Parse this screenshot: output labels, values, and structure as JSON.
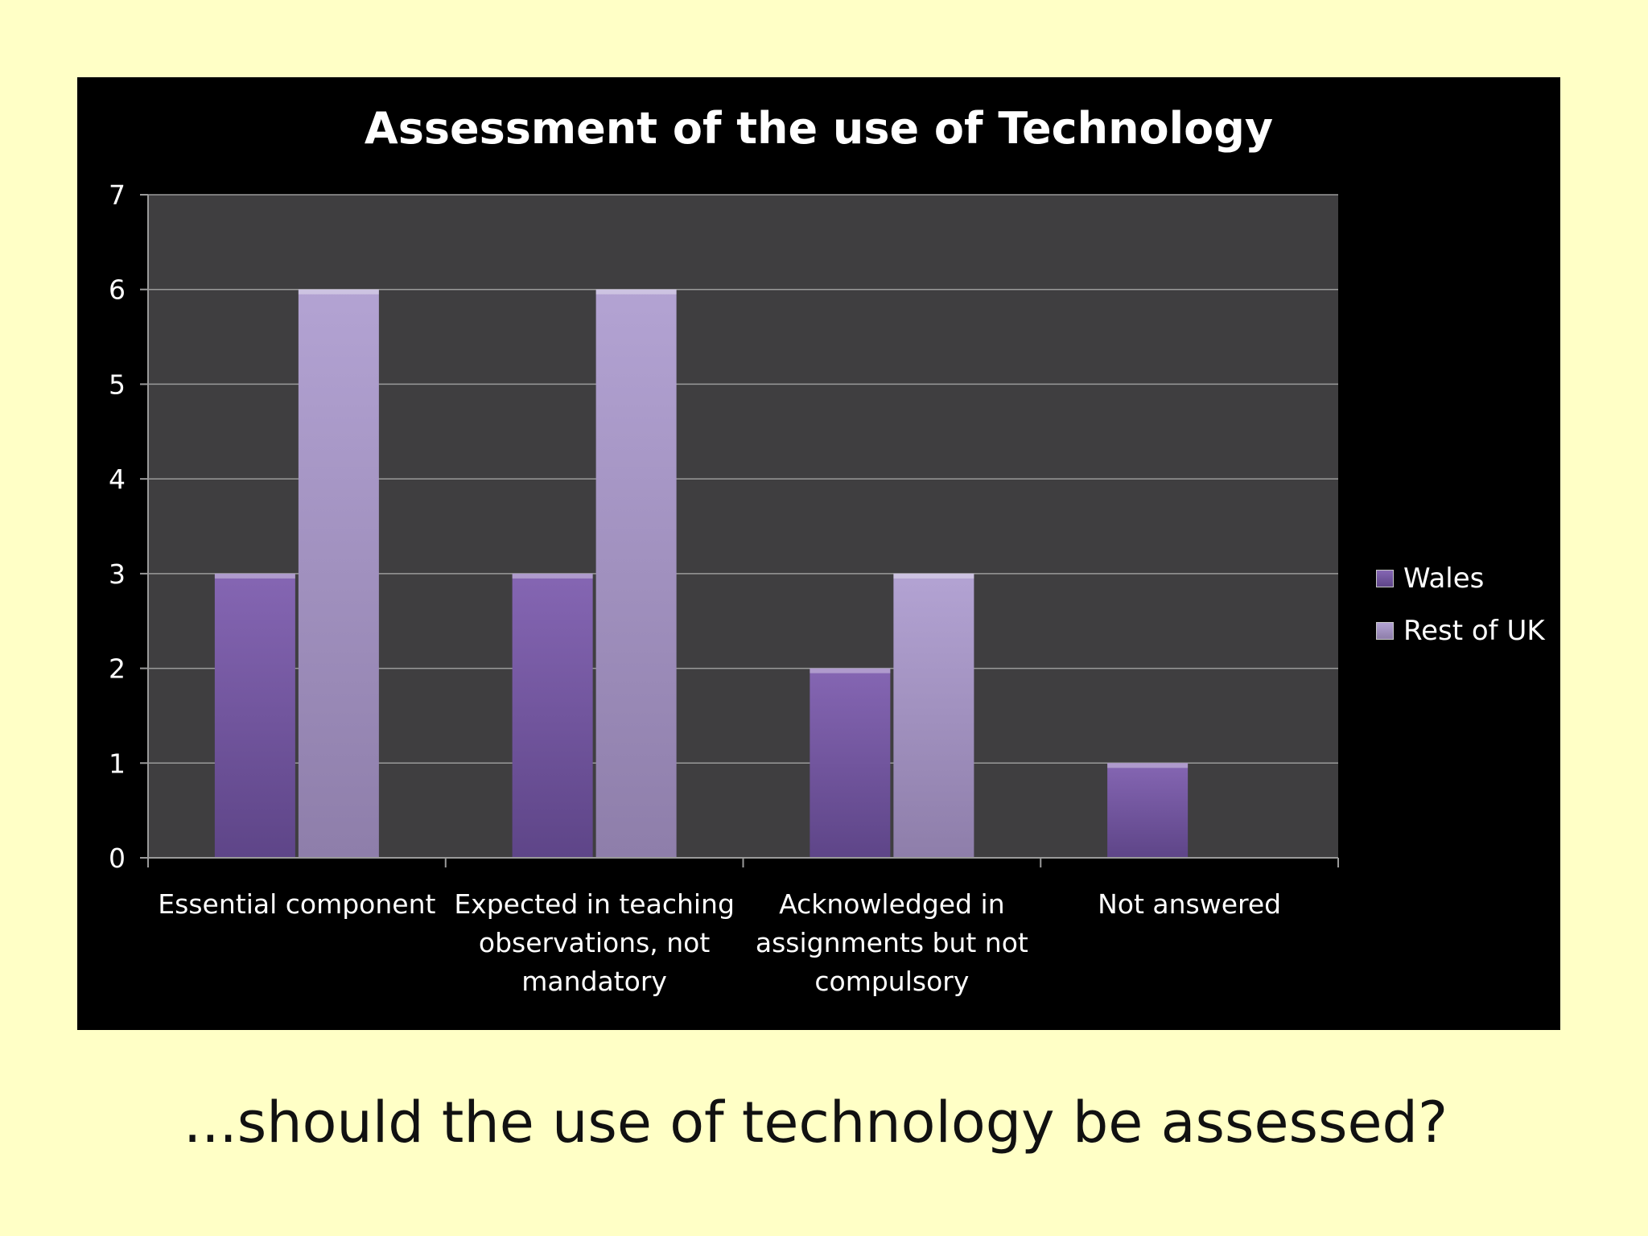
{
  "slide": {
    "caption": "...should the use of technology be assessed?"
  },
  "chart_data": {
    "type": "bar",
    "title": "Assessment of the use of Technology",
    "categories": [
      [
        "Essential component"
      ],
      [
        "Expected in teaching",
        "observations, not",
        "mandatory"
      ],
      [
        "Acknowledged in",
        "assignments but not",
        "compulsory"
      ],
      [
        "Not answered"
      ]
    ],
    "series": [
      {
        "name": "Wales",
        "values": [
          3,
          3,
          2,
          1
        ],
        "color": "#7b5aa6"
      },
      {
        "name": "Rest of UK",
        "values": [
          6,
          6,
          3,
          0
        ],
        "color": "#a795c5"
      }
    ],
    "ylim": [
      0,
      7
    ],
    "yticks": [
      0,
      1,
      2,
      3,
      4,
      5,
      6,
      7
    ],
    "grid": true,
    "legend": "right",
    "colors": {
      "plot_background": "#3f3e40",
      "panel_background": "#000000",
      "gridline": "#9a9a9a",
      "text": "#ffffff"
    }
  }
}
